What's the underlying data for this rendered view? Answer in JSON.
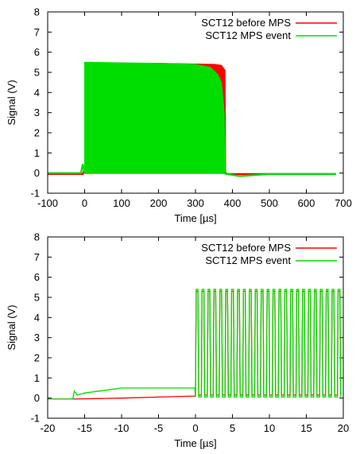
{
  "chart_data": [
    {
      "type": "line",
      "xlabel": "Time [µs]",
      "ylabel": "Signal (V)",
      "xlim": [
        -100,
        700
      ],
      "ylim": [
        -1,
        8
      ],
      "x_ticks": [
        "-100",
        "0",
        "100",
        "200",
        "300",
        "400",
        "500",
        "600",
        "700"
      ],
      "y_ticks": [
        "-1",
        "0",
        "1",
        "2",
        "3",
        "4",
        "5",
        "6",
        "7",
        "8"
      ],
      "legend_position": "top-right",
      "colors": {
        "before": "#ff0000",
        "event": "#00dd00"
      },
      "series": [
        {
          "name": "SCT12 before MPS",
          "style": "fast square wave (filled band) between low and high envelopes",
          "low": {
            "x": [
              -100,
              -5,
              0,
              100,
              200,
              300,
              380,
              385,
              500,
              680
            ],
            "y": [
              -0.05,
              -0.05,
              0.2,
              0.2,
              0.15,
              0.1,
              0.05,
              -0.05,
              -0.05,
              -0.05
            ]
          },
          "high": {
            "x": [
              0,
              200,
              350,
              370,
              380,
              382
            ],
            "y": [
              5.45,
              5.45,
              5.4,
              5.35,
              5.1,
              0.05
            ]
          }
        },
        {
          "name": "SCT12 MPS event",
          "style": "fast square wave (filled band) between low and high envelopes",
          "low": {
            "x": [
              -100,
              -10,
              -5,
              0,
              100,
              300,
              375,
              385,
              420,
              500,
              680
            ],
            "y": [
              0,
              0,
              0.45,
              0,
              0,
              0,
              0,
              -0.05,
              -0.15,
              -0.05,
              -0.05
            ]
          },
          "high": {
            "x": [
              0,
              200,
              300,
              340,
              360,
              370,
              378,
              382
            ],
            "y": [
              5.5,
              5.45,
              5.4,
              5.25,
              4.9,
              4.5,
              3.0,
              0.05
            ]
          }
        }
      ]
    },
    {
      "type": "line",
      "xlabel": "Time [µs]",
      "ylabel": "Signal (V)",
      "xlim": [
        -20,
        20
      ],
      "ylim": [
        -1,
        8
      ],
      "x_ticks": [
        "-20",
        "-15",
        "-10",
        "-5",
        "0",
        "5",
        "10",
        "15",
        "20"
      ],
      "y_ticks": [
        "-1",
        "0",
        "1",
        "2",
        "3",
        "4",
        "5",
        "6",
        "7",
        "8"
      ],
      "legend_position": "top-right",
      "colors": {
        "before": "#ff0000",
        "event": "#00dd00"
      },
      "series": [
        {
          "name": "SCT12 before MPS",
          "pre_x": [
            -20,
            -16.5,
            -10,
            -5,
            -0.1
          ],
          "pre_y": [
            -0.05,
            -0.05,
            0.0,
            0.05,
            0.1
          ],
          "pulse_start": 0,
          "pulse_period_us": 0.8,
          "pulse_count": 25,
          "pulse_high": 5.3,
          "pulse_low": 0.15
        },
        {
          "name": "SCT12 MPS event",
          "pre_x": [
            -20,
            -16.6,
            -16.4,
            -16,
            -15,
            -13,
            -11,
            -10,
            -5,
            -0.1
          ],
          "pre_y": [
            -0.05,
            -0.05,
            0.35,
            0.15,
            0.25,
            0.35,
            0.45,
            0.5,
            0.5,
            0.5
          ],
          "pulse_start": 0,
          "pulse_period_us": 0.8,
          "pulse_count": 25,
          "pulse_high": 5.4,
          "pulse_low": 0.05
        }
      ]
    }
  ]
}
